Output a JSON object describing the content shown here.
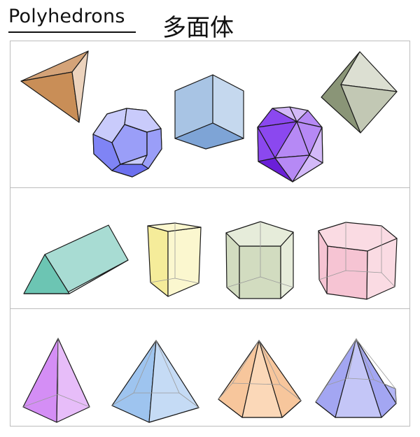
{
  "title": {
    "english": "Polyhedrons",
    "chinese": "多面体"
  },
  "rows": [
    {
      "items": [
        {
          "name": "tetrahedron",
          "colors": [
            "#d4a378",
            "#c98e57",
            "#ecd3bd"
          ]
        },
        {
          "name": "dodecahedron",
          "colors": [
            "#7f84f5",
            "#9a9ef8",
            "#6c70ef",
            "#c9cbfb"
          ]
        },
        {
          "name": "cube",
          "colors": [
            "#a8c4e4",
            "#c5d8ee",
            "#7ea4d6"
          ]
        },
        {
          "name": "icosahedron",
          "colors": [
            "#8b48ef",
            "#b689f5",
            "#6a1fd8",
            "#d3b9f8"
          ]
        },
        {
          "name": "octahedron",
          "colors": [
            "#8a9577",
            "#c2c8b4",
            "#dcdfd2"
          ]
        }
      ]
    },
    {
      "items": [
        {
          "name": "triangular-prism",
          "colors": [
            "#6cc5b3",
            "#a8dcd3",
            "#dff3ef"
          ]
        },
        {
          "name": "square-prism",
          "colors": [
            "#f5ec9a",
            "#fbf7cf"
          ]
        },
        {
          "name": "pentagonal-prism",
          "colors": [
            "#d2dcc0",
            "#e6ecda"
          ]
        },
        {
          "name": "hexagonal-prism",
          "colors": [
            "#f6c4d3",
            "#fadbe3"
          ]
        }
      ]
    },
    {
      "items": [
        {
          "name": "square-pyramid",
          "colors": [
            "#d48ef5",
            "#e7bdf9",
            "#c372ef"
          ]
        },
        {
          "name": "pentagonal-pyramid",
          "colors": [
            "#9ec4ef",
            "#c5dbf5",
            "#b3d1f2"
          ]
        },
        {
          "name": "hexagonal-pyramid",
          "colors": [
            "#f7c69c",
            "#fbd8b8",
            "#f9cfa9"
          ]
        },
        {
          "name": "heptagonal-pyramid",
          "colors": [
            "#a3a6f2",
            "#c4c6f7",
            "#b3b6f5"
          ]
        }
      ]
    }
  ]
}
